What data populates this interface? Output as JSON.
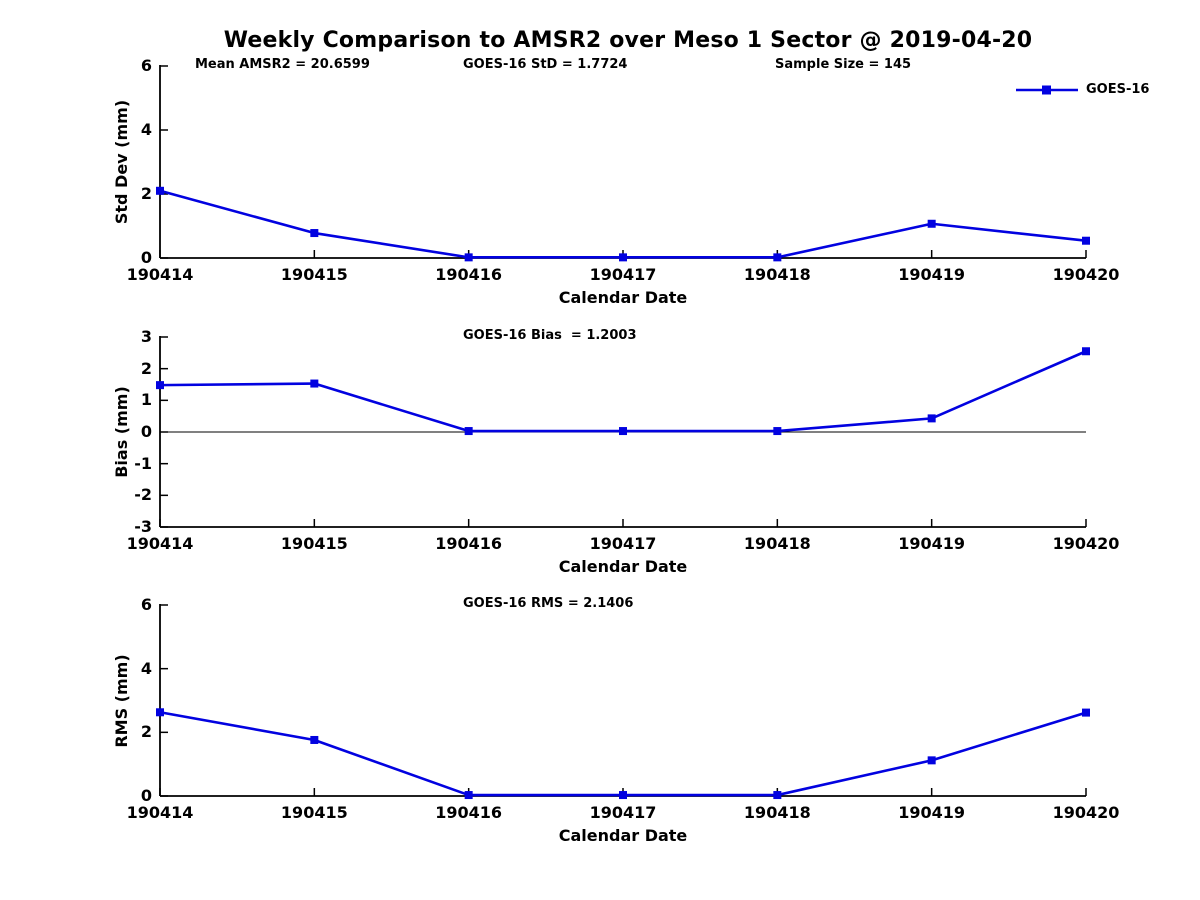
{
  "title": "Weekly Comparison to AMSR2 over Meso 1 Sector @ 2019-04-20",
  "legend": {
    "label": "GOES-16",
    "position": "upper right"
  },
  "colors": {
    "line": "#0202e0",
    "axis": "#000000",
    "text": "#000000",
    "background": "#ffffff"
  },
  "chart_data": [
    {
      "type": "line",
      "title": "Std Dev subplot",
      "annotations": [
        "Mean AMSR2 = 20.6599",
        "GOES-16 StD = 1.7724",
        "Sample Size = 145"
      ],
      "x": [
        "190414",
        "190415",
        "190416",
        "190417",
        "190418",
        "190419",
        "190420"
      ],
      "series": [
        {
          "name": "GOES-16",
          "values": [
            2.1,
            0.78,
            0.02,
            0.02,
            0.02,
            1.07,
            0.54
          ]
        }
      ],
      "xlabel": "Calendar Date",
      "ylabel": "Std Dev (mm)",
      "ylim": [
        0,
        6
      ],
      "yticks": [
        0,
        2,
        4,
        6
      ],
      "zero_line": false,
      "grid": false,
      "marker": "square"
    },
    {
      "type": "line",
      "title": "Bias subplot",
      "annotations": [
        "GOES-16 Bias  = 1.2003"
      ],
      "x": [
        "190414",
        "190415",
        "190416",
        "190417",
        "190418",
        "190419",
        "190420"
      ],
      "series": [
        {
          "name": "GOES-16",
          "values": [
            1.48,
            1.53,
            0.03,
            0.03,
            0.03,
            0.43,
            2.55
          ]
        }
      ],
      "xlabel": "Calendar Date",
      "ylabel": "Bias (mm)",
      "ylim": [
        -3,
        3
      ],
      "yticks": [
        -3,
        -2,
        -1,
        0,
        1,
        2,
        3
      ],
      "zero_line": true,
      "grid": false,
      "marker": "square"
    },
    {
      "type": "line",
      "title": "RMS subplot",
      "annotations": [
        "GOES-16 RMS = 2.1406"
      ],
      "x": [
        "190414",
        "190415",
        "190416",
        "190417",
        "190418",
        "190419",
        "190420"
      ],
      "series": [
        {
          "name": "GOES-16",
          "values": [
            2.63,
            1.76,
            0.03,
            0.03,
            0.03,
            1.12,
            2.62
          ]
        }
      ],
      "xlabel": "Calendar Date",
      "ylabel": "RMS (mm)",
      "ylim": [
        0,
        6
      ],
      "yticks": [
        0,
        2,
        4,
        6
      ],
      "zero_line": false,
      "grid": false,
      "marker": "square"
    }
  ]
}
